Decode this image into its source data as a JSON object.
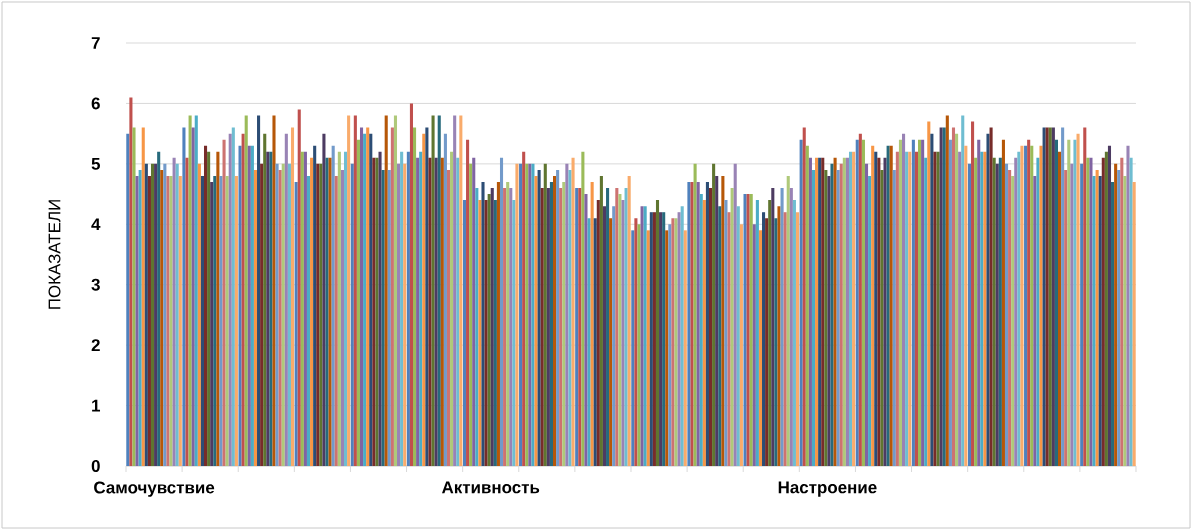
{
  "chart_data": {
    "type": "bar",
    "ylabel": "ПОКАЗАТЕЛИ",
    "categories": [
      "Самочувствие",
      null,
      null,
      null,
      null,
      null,
      "Активность",
      null,
      null,
      null,
      null,
      null,
      "Настроение",
      null,
      null,
      null,
      null,
      null
    ],
    "ylim": [
      0,
      7
    ],
    "yticks": [
      0,
      1,
      2,
      3,
      4,
      5,
      6,
      7
    ],
    "grid": "y",
    "series": [
      {
        "color": "#4f81bd",
        "values": [
          5.5,
          5.6,
          5.3,
          4.7,
          5.0,
          5.2,
          4.4,
          5.0,
          4.6,
          3.9,
          4.7,
          4.5,
          5.4,
          5.4,
          5.4,
          5.0,
          5.3,
          5.0
        ]
      },
      {
        "color": "#c0504d",
        "values": [
          6.1,
          5.1,
          5.5,
          5.9,
          5.8,
          6.0,
          5.4,
          5.2,
          4.6,
          4.1,
          4.7,
          4.5,
          5.6,
          5.5,
          5.2,
          5.7,
          5.4,
          5.6
        ]
      },
      {
        "color": "#9bbb59",
        "values": [
          5.6,
          5.8,
          5.8,
          5.2,
          5.4,
          5.6,
          5.0,
          5.0,
          5.2,
          4.0,
          5.0,
          4.5,
          5.3,
          5.4,
          5.4,
          5.1,
          5.3,
          5.1
        ]
      },
      {
        "color": "#8064a2",
        "values": [
          4.8,
          5.6,
          5.3,
          5.2,
          5.6,
          5.1,
          5.1,
          5.0,
          4.5,
          4.3,
          4.7,
          4.0,
          5.1,
          5.0,
          5.4,
          5.4,
          4.8,
          5.1
        ]
      },
      {
        "color": "#4bacc6",
        "values": [
          4.9,
          5.8,
          5.3,
          4.8,
          5.5,
          5.2,
          4.6,
          5.0,
          4.1,
          4.3,
          4.5,
          4.4,
          4.9,
          4.8,
          5.1,
          5.2,
          5.1,
          4.8
        ]
      },
      {
        "color": "#f79646",
        "values": [
          5.6,
          5.0,
          4.9,
          5.1,
          5.6,
          5.5,
          4.4,
          4.8,
          4.7,
          3.9,
          4.4,
          3.9,
          5.1,
          5.3,
          5.7,
          5.2,
          5.3,
          4.9
        ]
      },
      {
        "color": "#2c4d75",
        "values": [
          5.0,
          4.8,
          5.8,
          5.3,
          5.5,
          5.6,
          4.7,
          4.9,
          4.1,
          4.2,
          4.7,
          4.2,
          5.1,
          5.2,
          5.5,
          5.5,
          5.6,
          4.8
        ]
      },
      {
        "color": "#772c2a",
        "values": [
          4.8,
          5.3,
          5.0,
          5.0,
          5.1,
          5.1,
          4.4,
          4.6,
          4.4,
          4.2,
          4.6,
          4.1,
          5.1,
          5.1,
          5.2,
          5.6,
          5.6,
          5.1
        ]
      },
      {
        "color": "#5f7530",
        "values": [
          5.0,
          5.2,
          5.5,
          5.0,
          5.1,
          5.8,
          4.5,
          5.0,
          4.8,
          4.4,
          5.0,
          4.4,
          4.9,
          4.9,
          5.2,
          5.1,
          5.6,
          5.2
        ]
      },
      {
        "color": "#4d3b62",
        "values": [
          5.0,
          4.7,
          5.2,
          5.5,
          5.2,
          5.1,
          4.6,
          4.6,
          4.3,
          4.2,
          4.8,
          4.6,
          4.8,
          5.1,
          5.6,
          5.0,
          5.6,
          5.3
        ]
      },
      {
        "color": "#276a7c",
        "values": [
          5.2,
          4.8,
          5.2,
          5.1,
          4.9,
          5.8,
          4.4,
          4.7,
          4.6,
          4.2,
          4.3,
          4.1,
          5.0,
          5.3,
          5.6,
          5.1,
          5.4,
          4.7
        ]
      },
      {
        "color": "#b65708",
        "values": [
          4.9,
          5.2,
          5.8,
          5.1,
          5.8,
          5.1,
          4.7,
          4.8,
          4.1,
          3.9,
          4.8,
          4.3,
          5.1,
          5.3,
          5.8,
          5.4,
          5.2,
          5.0
        ]
      },
      {
        "color": "#729aca",
        "values": [
          5.0,
          4.8,
          5.0,
          5.3,
          4.9,
          5.5,
          5.1,
          4.9,
          4.3,
          4.0,
          4.4,
          4.6,
          4.9,
          4.9,
          5.4,
          5.0,
          5.6,
          4.9
        ]
      },
      {
        "color": "#cd7371",
        "values": [
          4.8,
          5.4,
          4.9,
          4.8,
          5.6,
          4.9,
          4.6,
          4.6,
          4.6,
          4.1,
          4.2,
          4.2,
          5.0,
          5.2,
          5.6,
          4.9,
          4.9,
          5.1
        ]
      },
      {
        "color": "#afc97a",
        "values": [
          4.8,
          4.8,
          5.0,
          5.2,
          5.8,
          5.2,
          4.7,
          4.7,
          4.5,
          4.1,
          4.6,
          4.8,
          5.1,
          5.4,
          5.5,
          4.8,
          5.4,
          4.8
        ]
      },
      {
        "color": "#9983b5",
        "values": [
          5.1,
          5.5,
          5.5,
          4.9,
          5.0,
          5.8,
          4.6,
          5.0,
          4.4,
          4.2,
          5.0,
          4.6,
          5.1,
          5.5,
          5.2,
          5.1,
          5.0,
          5.3
        ]
      },
      {
        "color": "#6fbdd1",
        "values": [
          5.0,
          5.6,
          5.0,
          5.2,
          5.2,
          5.1,
          4.4,
          4.9,
          4.6,
          4.3,
          4.3,
          4.4,
          5.2,
          5.2,
          5.8,
          5.2,
          5.4,
          5.1
        ]
      },
      {
        "color": "#f9ab6b",
        "values": [
          4.8,
          4.8,
          5.6,
          5.8,
          5.0,
          5.8,
          5.0,
          5.1,
          4.8,
          3.9,
          4.0,
          4.2,
          5.2,
          5.2,
          5.3,
          5.3,
          5.5,
          4.7
        ]
      }
    ]
  }
}
